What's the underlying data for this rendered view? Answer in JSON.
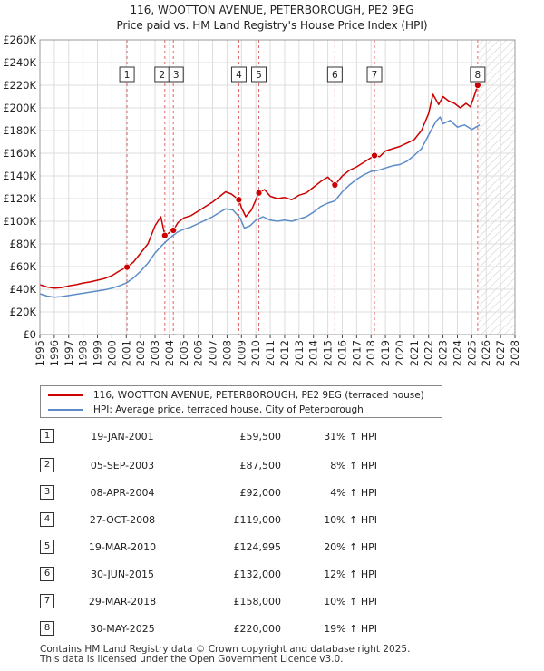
{
  "chart_title_line1": "116, WOOTTON AVENUE, PETERBOROUGH, PE2 9EG",
  "chart_title_line2": "Price paid vs. HM Land Registry's House Price Index (HPI)",
  "colors": {
    "property": "#cc0000",
    "hpi": "#5b8cc8",
    "marker_line": "#e06666",
    "future_hatch": "#bbbbbb",
    "grid": "#dddddd"
  },
  "legend": {
    "property_label": "116, WOOTTON AVENUE, PETERBOROUGH, PE2 9EG (terraced house)",
    "hpi_label": "HPI: Average price, terraced house, City of Peterborough"
  },
  "chart_data": {
    "type": "line",
    "title": "Price paid vs. HM Land Registry's House Price Index (HPI)",
    "xlabel": "",
    "ylabel": "",
    "xlim": [
      1995,
      2028
    ],
    "ylim": [
      0,
      260000
    ],
    "grid": true,
    "legend_position": "below",
    "y_ticks": [
      {
        "value": 0,
        "label": "£0"
      },
      {
        "value": 20000,
        "label": "£20K"
      },
      {
        "value": 40000,
        "label": "£40K"
      },
      {
        "value": 60000,
        "label": "£60K"
      },
      {
        "value": 80000,
        "label": "£80K"
      },
      {
        "value": 100000,
        "label": "£100K"
      },
      {
        "value": 120000,
        "label": "£120K"
      },
      {
        "value": 140000,
        "label": "£140K"
      },
      {
        "value": 160000,
        "label": "£160K"
      },
      {
        "value": 180000,
        "label": "£180K"
      },
      {
        "value": 200000,
        "label": "£200K"
      },
      {
        "value": 220000,
        "label": "£220K"
      },
      {
        "value": 240000,
        "label": "£240K"
      },
      {
        "value": 260000,
        "label": "£260K"
      }
    ],
    "x_ticks": [
      "1995",
      "1996",
      "1997",
      "1998",
      "1999",
      "2000",
      "2001",
      "2002",
      "2003",
      "2004",
      "2005",
      "2006",
      "2007",
      "2008",
      "2009",
      "2010",
      "2011",
      "2012",
      "2013",
      "2014",
      "2015",
      "2016",
      "2017",
      "2018",
      "2019",
      "2020",
      "2021",
      "2022",
      "2023",
      "2024",
      "2025",
      "2026",
      "2027",
      "2028"
    ],
    "future_from": 2025.42,
    "series": [
      {
        "name": "116, WOOTTON AVENUE, PETERBOROUGH, PE2 9EG (terraced house)",
        "color": "#cc0000",
        "points": [
          [
            1995.0,
            44000
          ],
          [
            1995.5,
            42000
          ],
          [
            1996.0,
            41000
          ],
          [
            1996.5,
            41500
          ],
          [
            1997.0,
            43000
          ],
          [
            1997.5,
            44000
          ],
          [
            1998.0,
            45500
          ],
          [
            1998.5,
            46500
          ],
          [
            1999.0,
            48000
          ],
          [
            1999.5,
            49500
          ],
          [
            2000.0,
            52000
          ],
          [
            2000.5,
            56000
          ],
          [
            2001.05,
            59500
          ],
          [
            2001.5,
            64000
          ],
          [
            2002.0,
            72000
          ],
          [
            2002.5,
            80000
          ],
          [
            2003.0,
            96000
          ],
          [
            2003.4,
            104000
          ],
          [
            2003.68,
            87500
          ],
          [
            2004.0,
            90000
          ],
          [
            2004.27,
            92000
          ],
          [
            2004.6,
            99000
          ],
          [
            2005.0,
            103000
          ],
          [
            2005.5,
            105000
          ],
          [
            2006.0,
            109000
          ],
          [
            2006.5,
            113000
          ],
          [
            2007.0,
            117000
          ],
          [
            2007.5,
            122000
          ],
          [
            2007.9,
            126000
          ],
          [
            2008.3,
            124000
          ],
          [
            2008.82,
            119000
          ],
          [
            2009.0,
            112000
          ],
          [
            2009.3,
            104000
          ],
          [
            2009.7,
            110000
          ],
          [
            2010.21,
            124995
          ],
          [
            2010.6,
            128000
          ],
          [
            2011.0,
            122000
          ],
          [
            2011.5,
            120000
          ],
          [
            2012.0,
            121000
          ],
          [
            2012.5,
            119000
          ],
          [
            2013.0,
            123000
          ],
          [
            2013.5,
            125000
          ],
          [
            2014.0,
            130000
          ],
          [
            2014.5,
            135000
          ],
          [
            2015.0,
            139000
          ],
          [
            2015.5,
            132000
          ],
          [
            2016.0,
            140000
          ],
          [
            2016.5,
            145000
          ],
          [
            2017.0,
            148000
          ],
          [
            2017.5,
            152000
          ],
          [
            2018.24,
            158000
          ],
          [
            2018.6,
            157000
          ],
          [
            2019.0,
            162000
          ],
          [
            2019.5,
            164000
          ],
          [
            2020.0,
            166000
          ],
          [
            2020.5,
            169000
          ],
          [
            2021.0,
            172000
          ],
          [
            2021.5,
            180000
          ],
          [
            2022.0,
            195000
          ],
          [
            2022.3,
            212000
          ],
          [
            2022.7,
            203000
          ],
          [
            2023.0,
            210000
          ],
          [
            2023.4,
            206000
          ],
          [
            2023.8,
            204000
          ],
          [
            2024.2,
            200000
          ],
          [
            2024.6,
            204000
          ],
          [
            2024.9,
            201000
          ],
          [
            2025.1,
            208000
          ],
          [
            2025.41,
            220000
          ],
          [
            2025.55,
            226000
          ]
        ]
      },
      {
        "name": "HPI: Average price, terraced house, City of Peterborough",
        "color": "#5b8cc8",
        "points": [
          [
            1995.0,
            36000
          ],
          [
            1995.5,
            34000
          ],
          [
            1996.0,
            33000
          ],
          [
            1996.5,
            33500
          ],
          [
            1997.0,
            34500
          ],
          [
            1997.5,
            35500
          ],
          [
            1998.0,
            36500
          ],
          [
            1998.5,
            37500
          ],
          [
            1999.0,
            38500
          ],
          [
            1999.5,
            39500
          ],
          [
            2000.0,
            41000
          ],
          [
            2000.5,
            43000
          ],
          [
            2001.0,
            45500
          ],
          [
            2001.5,
            50000
          ],
          [
            2002.0,
            56000
          ],
          [
            2002.5,
            63000
          ],
          [
            2003.0,
            72000
          ],
          [
            2003.5,
            79000
          ],
          [
            2004.0,
            85000
          ],
          [
            2004.5,
            90000
          ],
          [
            2005.0,
            93000
          ],
          [
            2005.5,
            95000
          ],
          [
            2006.0,
            98000
          ],
          [
            2006.5,
            101000
          ],
          [
            2007.0,
            104000
          ],
          [
            2007.5,
            108000
          ],
          [
            2007.9,
            111000
          ],
          [
            2008.4,
            110000
          ],
          [
            2008.9,
            103000
          ],
          [
            2009.2,
            94000
          ],
          [
            2009.6,
            96000
          ],
          [
            2010.0,
            101000
          ],
          [
            2010.5,
            104000
          ],
          [
            2011.0,
            101000
          ],
          [
            2011.5,
            100000
          ],
          [
            2012.0,
            101000
          ],
          [
            2012.5,
            100000
          ],
          [
            2013.0,
            102000
          ],
          [
            2013.5,
            104000
          ],
          [
            2014.0,
            108000
          ],
          [
            2014.5,
            113000
          ],
          [
            2015.0,
            116000
          ],
          [
            2015.5,
            118000
          ],
          [
            2016.0,
            126000
          ],
          [
            2016.5,
            132000
          ],
          [
            2017.0,
            137000
          ],
          [
            2017.5,
            141000
          ],
          [
            2018.0,
            144000
          ],
          [
            2018.5,
            145000
          ],
          [
            2019.0,
            147000
          ],
          [
            2019.5,
            149000
          ],
          [
            2020.0,
            150000
          ],
          [
            2020.5,
            153000
          ],
          [
            2021.0,
            158000
          ],
          [
            2021.5,
            164000
          ],
          [
            2022.0,
            176000
          ],
          [
            2022.5,
            188000
          ],
          [
            2022.8,
            192000
          ],
          [
            2023.0,
            186000
          ],
          [
            2023.5,
            189000
          ],
          [
            2024.0,
            183000
          ],
          [
            2024.5,
            185000
          ],
          [
            2025.0,
            181000
          ],
          [
            2025.55,
            185000
          ]
        ]
      }
    ],
    "markers": [
      {
        "label": "1",
        "x": 2001.05,
        "y": 59500
      },
      {
        "label": "2",
        "x": 2003.68,
        "y": 87500
      },
      {
        "label": "3",
        "x": 2004.27,
        "y": 92000
      },
      {
        "label": "4",
        "x": 2008.82,
        "y": 119000
      },
      {
        "label": "5",
        "x": 2010.21,
        "y": 124995
      },
      {
        "label": "6",
        "x": 2015.49,
        "y": 132000
      },
      {
        "label": "7",
        "x": 2018.24,
        "y": 158000
      },
      {
        "label": "8",
        "x": 2025.41,
        "y": 220000
      }
    ]
  },
  "transactions": [
    {
      "num": "1",
      "date": "19-JAN-2001",
      "price": "£59,500",
      "hpi": "31% ↑ HPI"
    },
    {
      "num": "2",
      "date": "05-SEP-2003",
      "price": "£87,500",
      "hpi": "8% ↑ HPI"
    },
    {
      "num": "3",
      "date": "08-APR-2004",
      "price": "£92,000",
      "hpi": "4% ↑ HPI"
    },
    {
      "num": "4",
      "date": "27-OCT-2008",
      "price": "£119,000",
      "hpi": "10% ↑ HPI"
    },
    {
      "num": "5",
      "date": "19-MAR-2010",
      "price": "£124,995",
      "hpi": "20% ↑ HPI"
    },
    {
      "num": "6",
      "date": "30-JUN-2015",
      "price": "£132,000",
      "hpi": "12% ↑ HPI"
    },
    {
      "num": "7",
      "date": "29-MAR-2018",
      "price": "£158,000",
      "hpi": "10% ↑ HPI"
    },
    {
      "num": "8",
      "date": "30-MAY-2025",
      "price": "£220,000",
      "hpi": "19% ↑ HPI"
    }
  ],
  "footer": {
    "line1": "Contains HM Land Registry data © Crown copyright and database right 2025.",
    "line2": "This data is licensed under the Open Government Licence v3.0."
  }
}
